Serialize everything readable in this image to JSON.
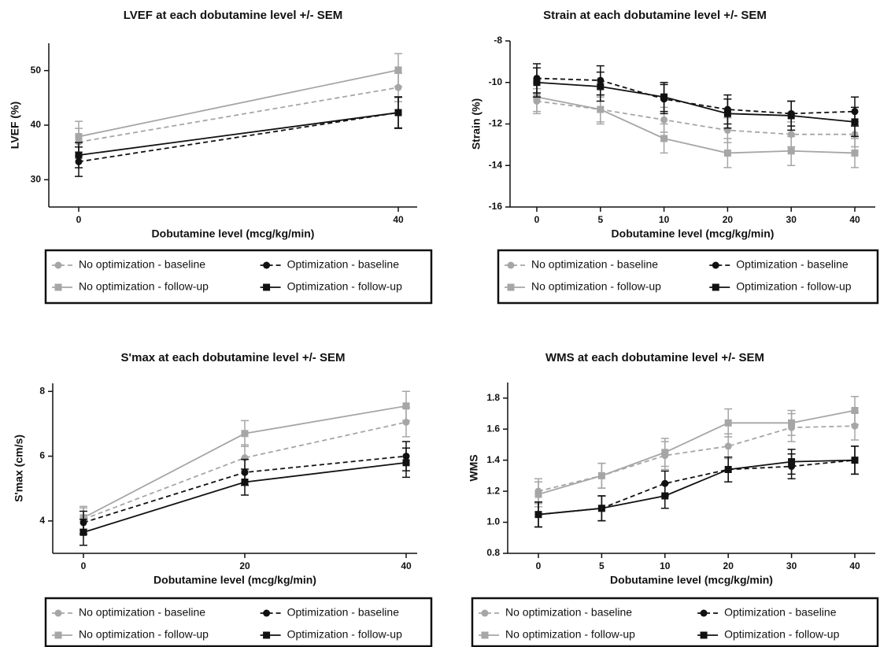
{
  "chart_data": [
    {
      "type": "line",
      "title": "LVEF at each dobutamine level +/- SEM",
      "x_label": "Dobutamine level (mcg/kg/min)",
      "y_label": "LVEF (%)",
      "categories": [
        "0",
        "40"
      ],
      "ylim": [
        25,
        55
      ],
      "yticks": [
        30,
        40,
        50
      ],
      "series": [
        {
          "name": "No optimization - baseline",
          "color": "#a6a6a6",
          "marker": "circle",
          "dashed": true,
          "values": [
            36.9,
            46.9
          ],
          "errors": [
            2.5,
            2.6
          ]
        },
        {
          "name": "No optimization - follow-up",
          "color": "#a6a6a6",
          "marker": "square",
          "dashed": false,
          "values": [
            37.9,
            50.1
          ],
          "errors": [
            2.8,
            3.0
          ]
        },
        {
          "name": "Optimization - baseline",
          "color": "#111111",
          "marker": "circle",
          "dashed": true,
          "values": [
            33.3,
            42.3
          ],
          "errors": [
            2.7,
            2.8
          ]
        },
        {
          "name": "Optimization - follow-up",
          "color": "#111111",
          "marker": "square",
          "dashed": false,
          "values": [
            34.5,
            42.3
          ],
          "errors": [
            2.3,
            2.9
          ]
        }
      ]
    },
    {
      "type": "line",
      "title": "Strain at each dobutamine level +/- SEM",
      "x_label": "Dobutamine level (mcg/kg/min)",
      "y_label": "Strain (%)",
      "categories": [
        "0",
        "5",
        "10",
        "20",
        "30",
        "40"
      ],
      "ylim": [
        -16,
        -8
      ],
      "yticks": [
        -16,
        -14,
        -12,
        -10,
        -8
      ],
      "series": [
        {
          "name": "No optimization - baseline",
          "color": "#a6a6a6",
          "marker": "circle",
          "dashed": true,
          "values": [
            -10.9,
            -11.3,
            -11.8,
            -12.3,
            -12.5,
            -12.5
          ],
          "errors": [
            0.6,
            0.6,
            0.6,
            0.6,
            0.6,
            0.6
          ]
        },
        {
          "name": "No optimization - follow-up",
          "color": "#a6a6a6",
          "marker": "square",
          "dashed": false,
          "values": [
            -10.7,
            -11.3,
            -12.7,
            -13.4,
            -13.3,
            -13.4
          ],
          "errors": [
            0.7,
            0.7,
            0.7,
            0.7,
            0.7,
            0.7
          ]
        },
        {
          "name": "Optimization - baseline",
          "color": "#111111",
          "marker": "circle",
          "dashed": true,
          "values": [
            -9.8,
            -9.9,
            -10.8,
            -11.3,
            -11.5,
            -11.4
          ],
          "errors": [
            0.7,
            0.7,
            0.7,
            0.7,
            0.6,
            0.7
          ]
        },
        {
          "name": "Optimization - follow-up",
          "color": "#111111",
          "marker": "square",
          "dashed": false,
          "values": [
            -10.0,
            -10.2,
            -10.7,
            -11.5,
            -11.6,
            -11.9
          ],
          "errors": [
            0.7,
            0.7,
            0.7,
            0.7,
            0.7,
            0.7
          ]
        }
      ]
    },
    {
      "type": "line",
      "title": "S'max at each dobutamine level +/- SEM",
      "x_label": "Dobutamine level (mcg/kg/min)",
      "y_label": "S'max (cm/s)",
      "categories": [
        "0",
        "20",
        "40"
      ],
      "ylim": [
        3,
        8.25
      ],
      "yticks": [
        4,
        6,
        8
      ],
      "series": [
        {
          "name": "No optimization - baseline",
          "color": "#a6a6a6",
          "marker": "circle",
          "dashed": true,
          "values": [
            4.05,
            5.95,
            7.05
          ],
          "errors": [
            0.35,
            0.4,
            0.45
          ]
        },
        {
          "name": "No optimization - follow-up",
          "color": "#a6a6a6",
          "marker": "square",
          "dashed": false,
          "values": [
            4.1,
            6.7,
            7.55
          ],
          "errors": [
            0.35,
            0.4,
            0.45
          ]
        },
        {
          "name": "Optimization - baseline",
          "color": "#111111",
          "marker": "circle",
          "dashed": true,
          "values": [
            3.95,
            5.5,
            6.0
          ],
          "errors": [
            0.35,
            0.4,
            0.45
          ]
        },
        {
          "name": "Optimization - follow-up",
          "color": "#111111",
          "marker": "square",
          "dashed": false,
          "values": [
            3.65,
            5.2,
            5.8
          ],
          "errors": [
            0.4,
            0.4,
            0.45
          ]
        }
      ]
    },
    {
      "type": "line",
      "title": "WMS at each dobutamine level +/- SEM",
      "x_label": "Dobutamine level (mcg/kg/min)",
      "y_label": "WMS",
      "categories": [
        "0",
        "5",
        "10",
        "20",
        "30",
        "40"
      ],
      "ylim": [
        0.8,
        1.9
      ],
      "yticks": [
        0.8,
        {
          "value": 1,
          "label": "1.0"
        },
        1.2,
        1.4,
        1.6,
        1.8
      ],
      "series": [
        {
          "name": "No optimization - baseline",
          "color": "#a6a6a6",
          "marker": "circle",
          "dashed": true,
          "values": [
            1.2,
            1.3,
            1.43,
            1.49,
            1.61,
            1.62
          ],
          "errors": [
            0.08,
            0.08,
            0.09,
            0.08,
            0.09,
            0.09
          ]
        },
        {
          "name": "No optimization - follow-up",
          "color": "#a6a6a6",
          "marker": "square",
          "dashed": false,
          "values": [
            1.18,
            1.3,
            1.45,
            1.64,
            1.64,
            1.72
          ],
          "errors": [
            0.08,
            0.08,
            0.09,
            0.09,
            0.08,
            0.09
          ]
        },
        {
          "name": "Optimization - baseline",
          "color": "#111111",
          "marker": "circle",
          "dashed": true,
          "values": [
            1.05,
            1.09,
            1.25,
            1.34,
            1.36,
            1.4
          ],
          "errors": [
            0.08,
            0.08,
            0.08,
            0.08,
            0.08,
            0.09
          ]
        },
        {
          "name": "Optimization - follow-up",
          "color": "#111111",
          "marker": "square",
          "dashed": false,
          "values": [
            1.05,
            1.09,
            1.17,
            1.34,
            1.39,
            1.4
          ],
          "errors": [
            0.08,
            0.08,
            0.08,
            0.08,
            0.08,
            0.09
          ]
        }
      ]
    }
  ]
}
